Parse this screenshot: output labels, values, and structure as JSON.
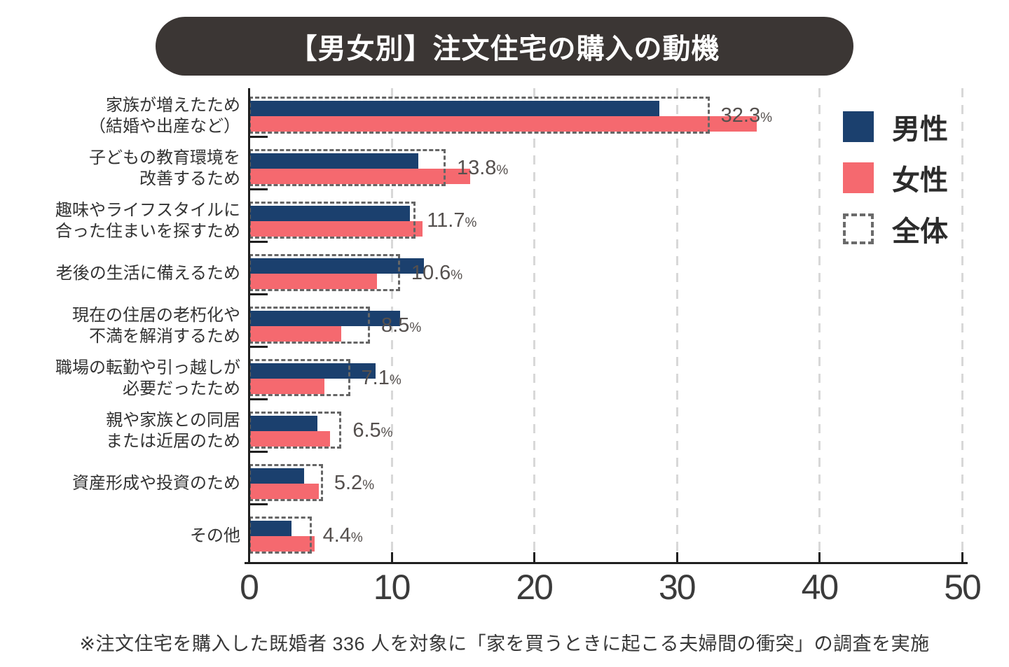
{
  "title": "【男女別】注文住宅の購入の動機",
  "footnote": "※注文住宅を購入した既婚者 336 人を対象に「家を買うときに起こる夫婦間の衝突」の調査を実施",
  "colors": {
    "male": "#1b406e",
    "female": "#f5696f",
    "overall_dash": "#666666",
    "title_bg": "#3b3634",
    "title_text": "#ffffff",
    "grid": "#d8d8d8",
    "axis": "#1f1f1f",
    "category_text": "#333333",
    "value_text": "#55504e"
  },
  "legend": {
    "position": "top-right",
    "items": [
      {
        "label": "男性",
        "swatch": "male-solid",
        "color": "#1b406e"
      },
      {
        "label": "女性",
        "swatch": "female-solid",
        "color": "#f5696f"
      },
      {
        "label": "全体",
        "swatch": "overall-dashed",
        "color": "#6b6b6b"
      }
    ]
  },
  "chart_data": {
    "type": "bar",
    "orientation": "horizontal",
    "title": "【男女別】注文住宅の購入の動機",
    "xlabel": "",
    "ylabel": "",
    "unit": "%",
    "xlim": [
      0,
      50
    ],
    "xticks": [
      0,
      10,
      20,
      30,
      40,
      50
    ],
    "grid": "dashed-vertical",
    "categories": [
      "家族が増えたため\n（結婚や出産など）",
      "子どもの教育環境を\n改善するため",
      "趣味やライフスタイルに\n合った住まいを探すため",
      "老後の生活に備えるため",
      "現在の住居の老朽化や\n不満を解消するため",
      "職場の転勤や引っ越しが\n必要だったため",
      "親や家族との同居\nまたは近居のため",
      "資産形成や投資のため",
      "その他"
    ],
    "series": [
      {
        "name": "男性",
        "style": "solid",
        "values": [
          28.8,
          11.9,
          11.3,
          12.3,
          10.6,
          8.9,
          4.8,
          3.9,
          3.0
        ]
      },
      {
        "name": "女性",
        "style": "solid",
        "values": [
          35.6,
          15.5,
          12.2,
          9.0,
          6.5,
          5.3,
          5.7,
          4.9,
          4.6
        ]
      },
      {
        "name": "全体",
        "style": "dashed-outline",
        "labeled": true,
        "values": [
          32.3,
          13.8,
          11.7,
          10.6,
          8.5,
          7.1,
          6.5,
          5.2,
          4.4
        ]
      }
    ],
    "value_labels": [
      "32.3%",
      "13.8%",
      "11.7%",
      "10.6%",
      "8.5%",
      "7.1%",
      "6.5%",
      "5.2%",
      "4.4%"
    ]
  }
}
